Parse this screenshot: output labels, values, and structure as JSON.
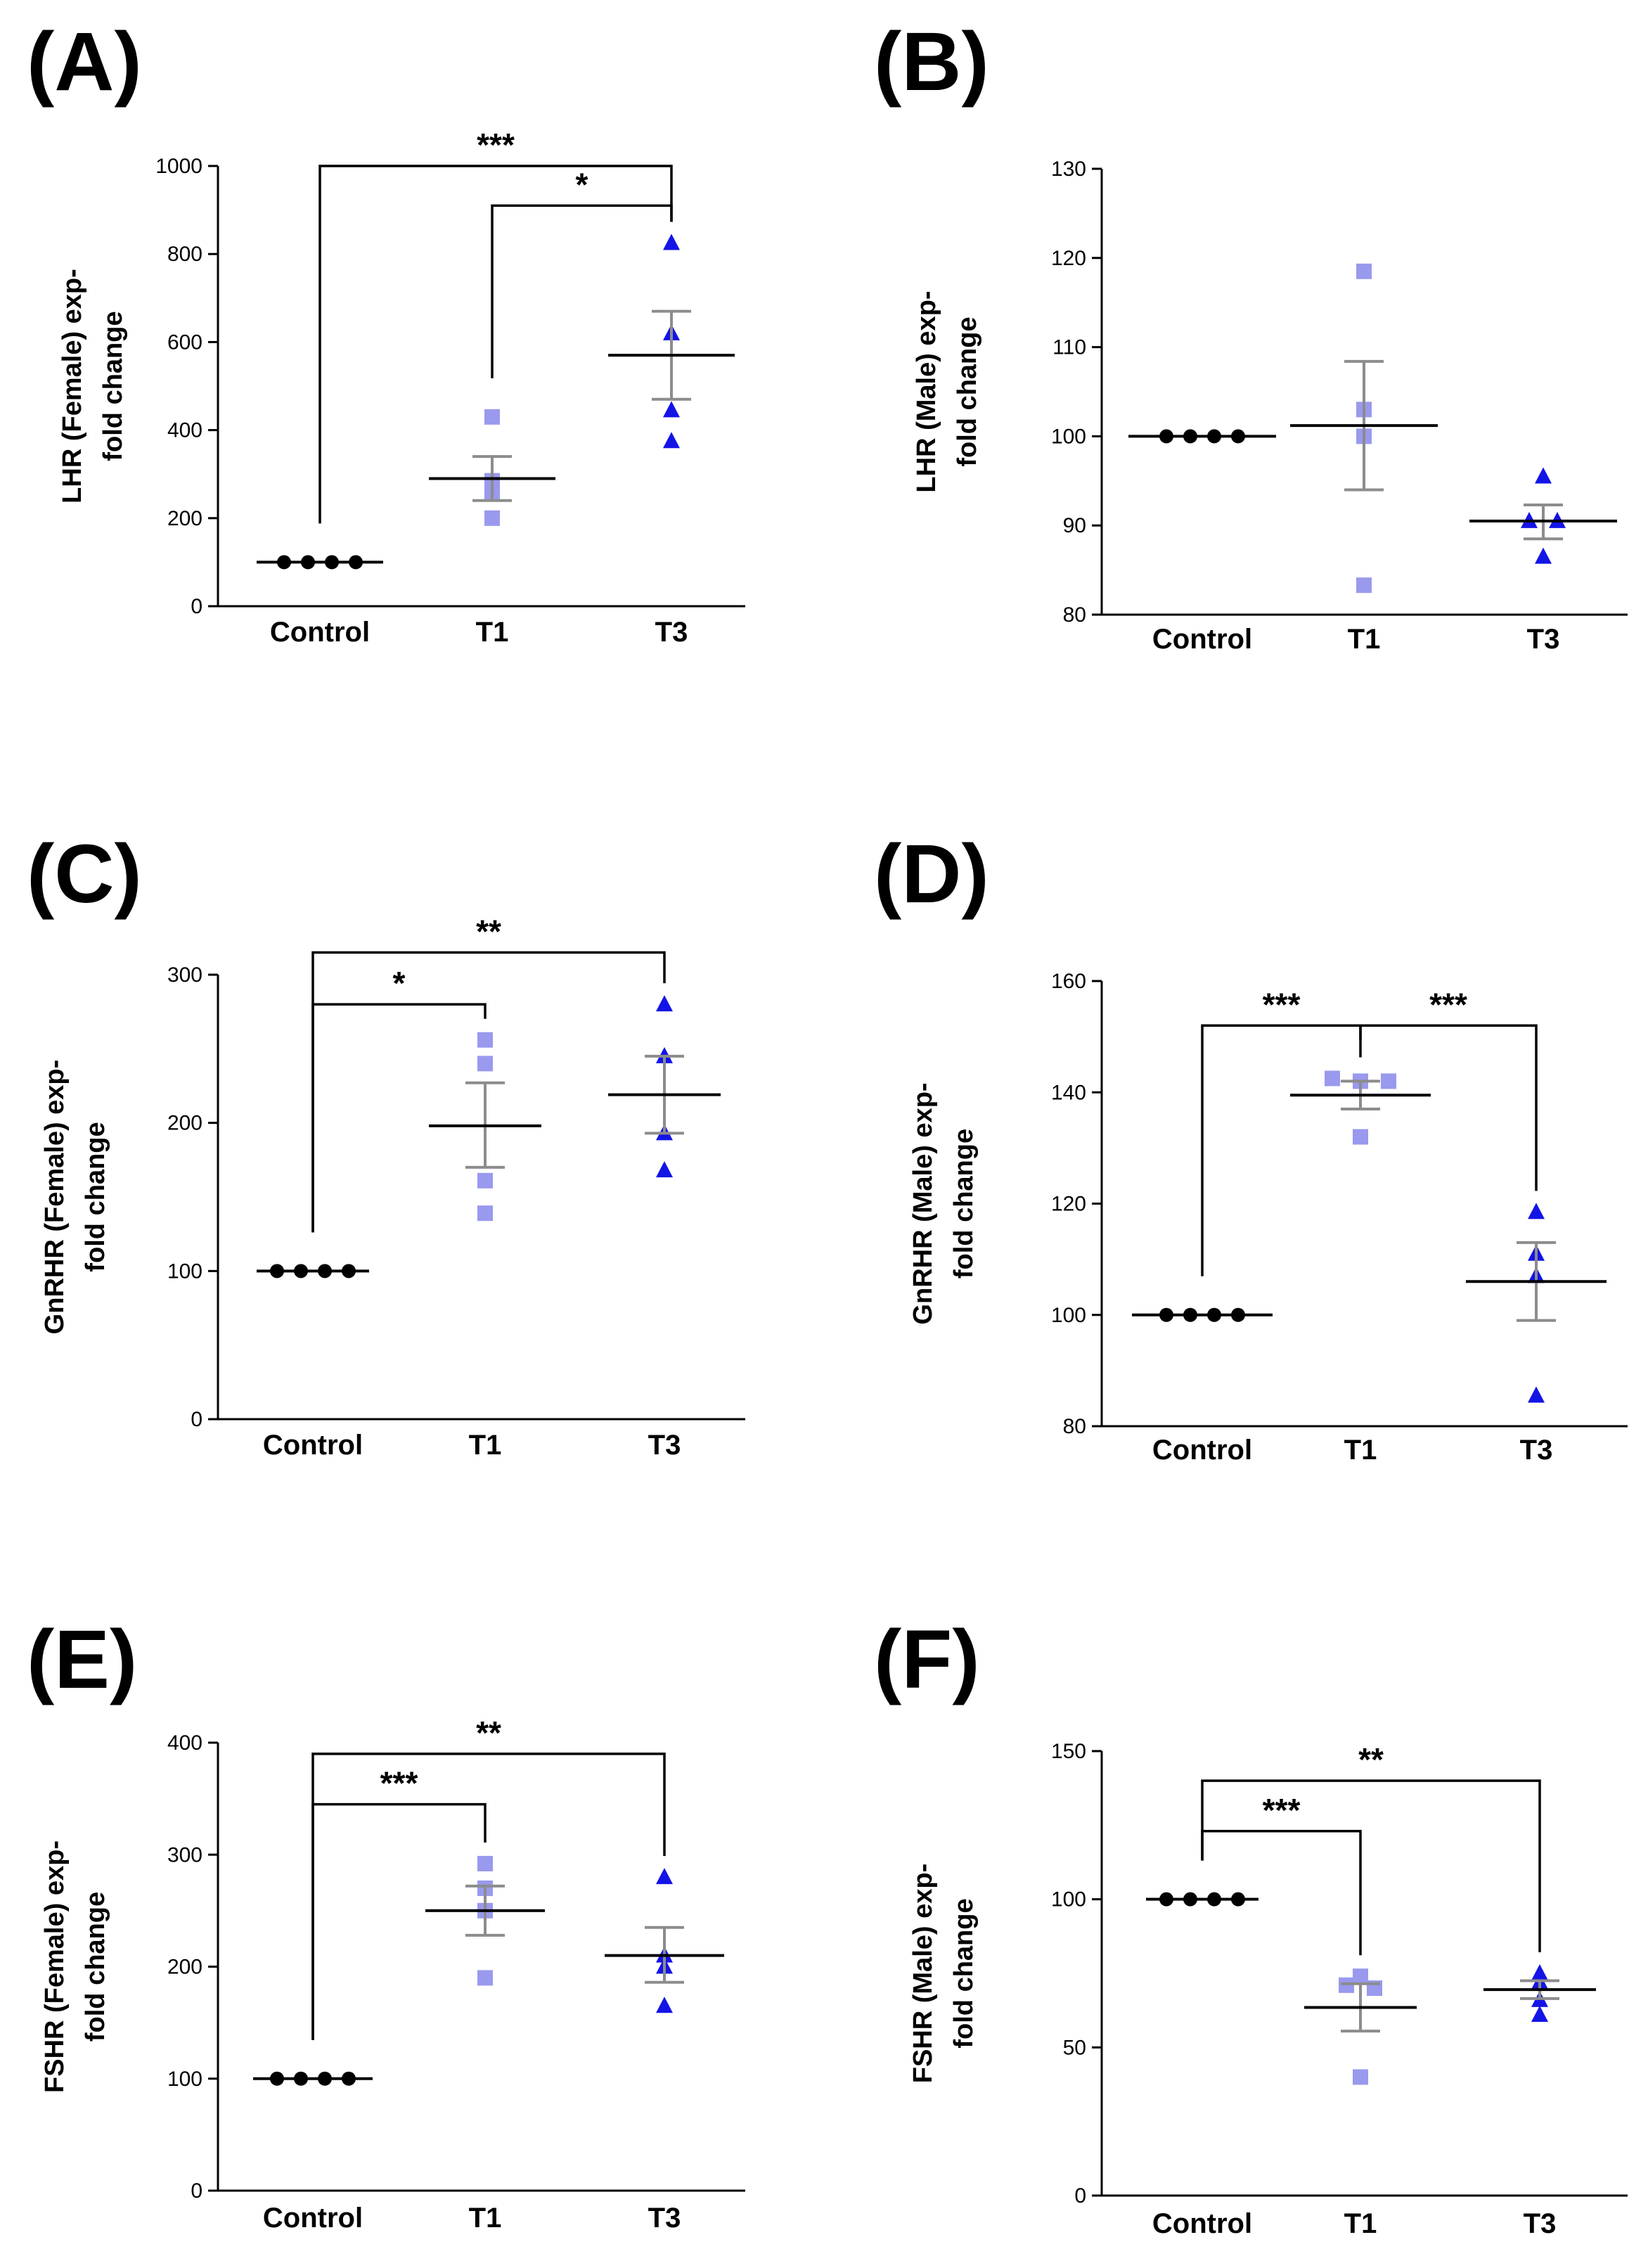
{
  "colors": {
    "control": "#000000",
    "t1": "#9999ee",
    "t3": "#1414e6",
    "errorbar": "#8c8c8c",
    "mean": "#000000",
    "axis": "#000000"
  },
  "chart_data": [
    {
      "panel": "(A)",
      "type": "scatter",
      "ylabel": [
        "LHR (Female) exp-",
        "fold change"
      ],
      "categories": [
        "Control",
        "T1",
        "T3"
      ],
      "ylim": [
        0,
        1000
      ],
      "yticks": [
        0,
        200,
        400,
        600,
        800,
        1000
      ],
      "groups": [
        {
          "name": "Control",
          "marker": "circle",
          "points": [
            100,
            100,
            100,
            100
          ],
          "mean": 100,
          "sem": [
            100,
            100
          ]
        },
        {
          "name": "T1",
          "marker": "square",
          "points": [
            430,
            285,
            255,
            200
          ],
          "mean": 290,
          "sem": [
            240,
            340
          ]
        },
        {
          "name": "T3",
          "marker": "triangle",
          "points": [
            825,
            620,
            445,
            375
          ],
          "mean": 570,
          "sem": [
            470,
            670
          ]
        }
      ],
      "significance": [
        {
          "from": "Control",
          "to": "T3",
          "label": "***",
          "y": 1000
        },
        {
          "from": "T1",
          "to": "T3",
          "label": "*",
          "y": 910
        }
      ]
    },
    {
      "panel": "(B)",
      "type": "scatter",
      "ylabel": [
        "LHR (Male) exp-",
        "fold change"
      ],
      "categories": [
        "Control",
        "T1",
        "T3"
      ],
      "ylim": [
        80,
        130
      ],
      "yticks": [
        80,
        90,
        100,
        110,
        120,
        130
      ],
      "groups": [
        {
          "name": "Control",
          "marker": "circle",
          "points": [
            100,
            100,
            100,
            100
          ],
          "mean": 100,
          "sem": [
            100,
            100
          ]
        },
        {
          "name": "T1",
          "marker": "square",
          "points": [
            118.5,
            103,
            100,
            83.3
          ],
          "mean": 101.2,
          "sem": [
            94,
            108.4
          ]
        },
        {
          "name": "T3",
          "marker": "triangle",
          "points": [
            95.5,
            90.5,
            90.5,
            86.5
          ],
          "mean": 90.5,
          "sem": [
            88.5,
            92.3
          ]
        }
      ],
      "significance": []
    },
    {
      "panel": "(C)",
      "type": "scatter",
      "ylabel": [
        "GnRHR (Female) exp-",
        "fold change"
      ],
      "categories": [
        "Control",
        "T1",
        "T3"
      ],
      "ylim": [
        0,
        300
      ],
      "yticks": [
        0,
        100,
        200,
        300
      ],
      "groups": [
        {
          "name": "Control",
          "marker": "circle",
          "points": [
            100,
            100,
            100,
            100
          ],
          "mean": 100,
          "sem": [
            100,
            100
          ]
        },
        {
          "name": "T1",
          "marker": "square",
          "points": [
            256,
            240,
            161,
            139
          ],
          "mean": 198,
          "sem": [
            170,
            227
          ]
        },
        {
          "name": "T3",
          "marker": "triangle",
          "points": [
            280,
            245,
            193,
            168
          ],
          "mean": 219,
          "sem": [
            193,
            245
          ]
        }
      ],
      "significance": [
        {
          "from": "Control",
          "to": "T3",
          "label": "**",
          "y": 315
        },
        {
          "from": "Control",
          "to": "T1",
          "label": "*",
          "y": 280
        }
      ]
    },
    {
      "panel": "(D)",
      "type": "scatter",
      "ylabel": [
        "GnRHR (Male) exp-",
        "fold change"
      ],
      "categories": [
        "Control",
        "T1",
        "T3"
      ],
      "ylim": [
        80,
        160
      ],
      "yticks": [
        80,
        100,
        120,
        140,
        160
      ],
      "groups": [
        {
          "name": "Control",
          "marker": "circle",
          "points": [
            100,
            100,
            100,
            100
          ],
          "mean": 100,
          "sem": [
            100,
            100
          ]
        },
        {
          "name": "T1",
          "marker": "square",
          "points": [
            142.5,
            142,
            142,
            132
          ],
          "mean": 139.5,
          "sem": [
            137,
            142
          ]
        },
        {
          "name": "T3",
          "marker": "triangle",
          "points": [
            118.5,
            111,
            107,
            85.5
          ],
          "mean": 106,
          "sem": [
            99,
            113
          ]
        }
      ],
      "significance": [
        {
          "from": "Control",
          "to": "T1",
          "label": "***",
          "y": 152
        },
        {
          "from": "T1",
          "to": "T3",
          "label": "***",
          "y": 152
        }
      ]
    },
    {
      "panel": "(E)",
      "type": "scatter",
      "ylabel": [
        "FSHR (Female) exp-",
        "fold change"
      ],
      "categories": [
        "Control",
        "T1",
        "T3"
      ],
      "ylim": [
        0,
        400
      ],
      "yticks": [
        0,
        100,
        200,
        300,
        400
      ],
      "groups": [
        {
          "name": "Control",
          "marker": "circle",
          "points": [
            100,
            100,
            100,
            100
          ],
          "mean": 100,
          "sem": [
            100,
            100
          ]
        },
        {
          "name": "T1",
          "marker": "square",
          "points": [
            292,
            270,
            250,
            190
          ],
          "mean": 250,
          "sem": [
            228,
            272
          ]
        },
        {
          "name": "T3",
          "marker": "triangle",
          "points": [
            280,
            210,
            200,
            165
          ],
          "mean": 210,
          "sem": [
            186,
            235
          ]
        }
      ],
      "significance": [
        {
          "from": "Control",
          "to": "T3",
          "label": "**",
          "y": 390
        },
        {
          "from": "Control",
          "to": "T1",
          "label": "***",
          "y": 345
        }
      ]
    },
    {
      "panel": "(F)",
      "type": "scatter",
      "ylabel": [
        "FSHR (Male) exp-",
        "fold change"
      ],
      "categories": [
        "Control",
        "T1",
        "T3"
      ],
      "ylim": [
        0,
        150
      ],
      "yticks": [
        0,
        50,
        100,
        150
      ],
      "groups": [
        {
          "name": "Control",
          "marker": "circle",
          "points": [
            100,
            100,
            100,
            100
          ],
          "mean": 100,
          "sem": [
            100,
            100
          ]
        },
        {
          "name": "T1",
          "marker": "square",
          "points": [
            74,
            71,
            70,
            40
          ],
          "mean": 63.5,
          "sem": [
            55.5,
            71.5
          ]
        },
        {
          "name": "T3",
          "marker": "triangle",
          "points": [
            75,
            72,
            66,
            61
          ],
          "mean": 69.5,
          "sem": [
            66.5,
            72.5
          ]
        }
      ],
      "significance": [
        {
          "from": "Control",
          "to": "T3",
          "label": "**",
          "y": 140
        },
        {
          "from": "Control",
          "to": "T1",
          "label": "***",
          "y": 123
        }
      ]
    }
  ]
}
